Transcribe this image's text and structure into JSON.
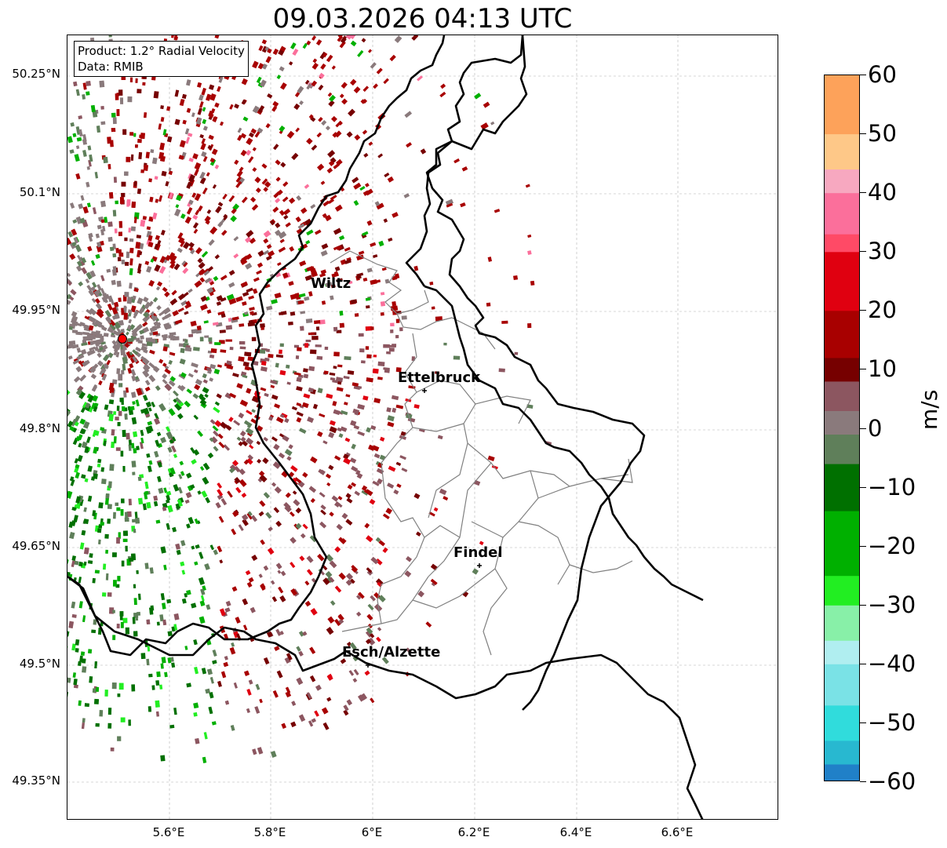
{
  "title": "09.03.2026 04:13 UTC",
  "info": {
    "product": "Product: 1.2° Radial Velocity",
    "source": "Data: RMIB"
  },
  "lat_ticks": [
    "50.25°N",
    "50.1°N",
    "49.95°N",
    "49.8°N",
    "49.65°N",
    "49.5°N",
    "49.35°N"
  ],
  "lon_ticks": [
    "5.6°E",
    "5.8°E",
    "6°E",
    "6.2°E",
    "6.4°E",
    "6.6°E"
  ],
  "cities": [
    {
      "name": "Wiltz"
    },
    {
      "name": "Ettelbruck"
    },
    {
      "name": "Findel"
    },
    {
      "name": "Esch/Alzette"
    }
  ],
  "colorbar": {
    "unit": "m/s",
    "range": [
      -60,
      60
    ],
    "ticks": [
      "60",
      "50",
      "40",
      "30",
      "20",
      "10",
      "0",
      "−10",
      "−20",
      "−30",
      "−40",
      "−50",
      "−60"
    ],
    "stops": [
      {
        "from": 50,
        "to": 60,
        "color": "#fda25a"
      },
      {
        "from": 44,
        "to": 50,
        "color": "#fec888"
      },
      {
        "from": 40,
        "to": 44,
        "color": "#f7a8c0"
      },
      {
        "from": 33,
        "to": 40,
        "color": "#fb6f9b"
      },
      {
        "from": 30,
        "to": 33,
        "color": "#ff4a66"
      },
      {
        "from": 20,
        "to": 30,
        "color": "#e00010"
      },
      {
        "from": 12,
        "to": 20,
        "color": "#a80000"
      },
      {
        "from": 8,
        "to": 12,
        "color": "#760000"
      },
      {
        "from": 3,
        "to": 8,
        "color": "#8c5660"
      },
      {
        "from": -1,
        "to": 3,
        "color": "#8a7a7c"
      },
      {
        "from": -6,
        "to": -1,
        "color": "#5f7f5a"
      },
      {
        "from": -14,
        "to": -6,
        "color": "#007000"
      },
      {
        "from": -25,
        "to": -14,
        "color": "#00b000"
      },
      {
        "from": -30,
        "to": -25,
        "color": "#22ee22"
      },
      {
        "from": -36,
        "to": -30,
        "color": "#88f0a8"
      },
      {
        "from": -40,
        "to": -36,
        "color": "#b0eef0"
      },
      {
        "from": -47,
        "to": -40,
        "color": "#7ae2e6"
      },
      {
        "from": -53,
        "to": -47,
        "color": "#30dcdc"
      },
      {
        "from": -57,
        "to": -53,
        "color": "#28b8d0"
      },
      {
        "from": -60,
        "to": -57,
        "color": "#2080c8"
      }
    ]
  },
  "colors": {
    "border_country": "#000000",
    "border_canton": "#808080",
    "radar_site": "#ff0000"
  }
}
